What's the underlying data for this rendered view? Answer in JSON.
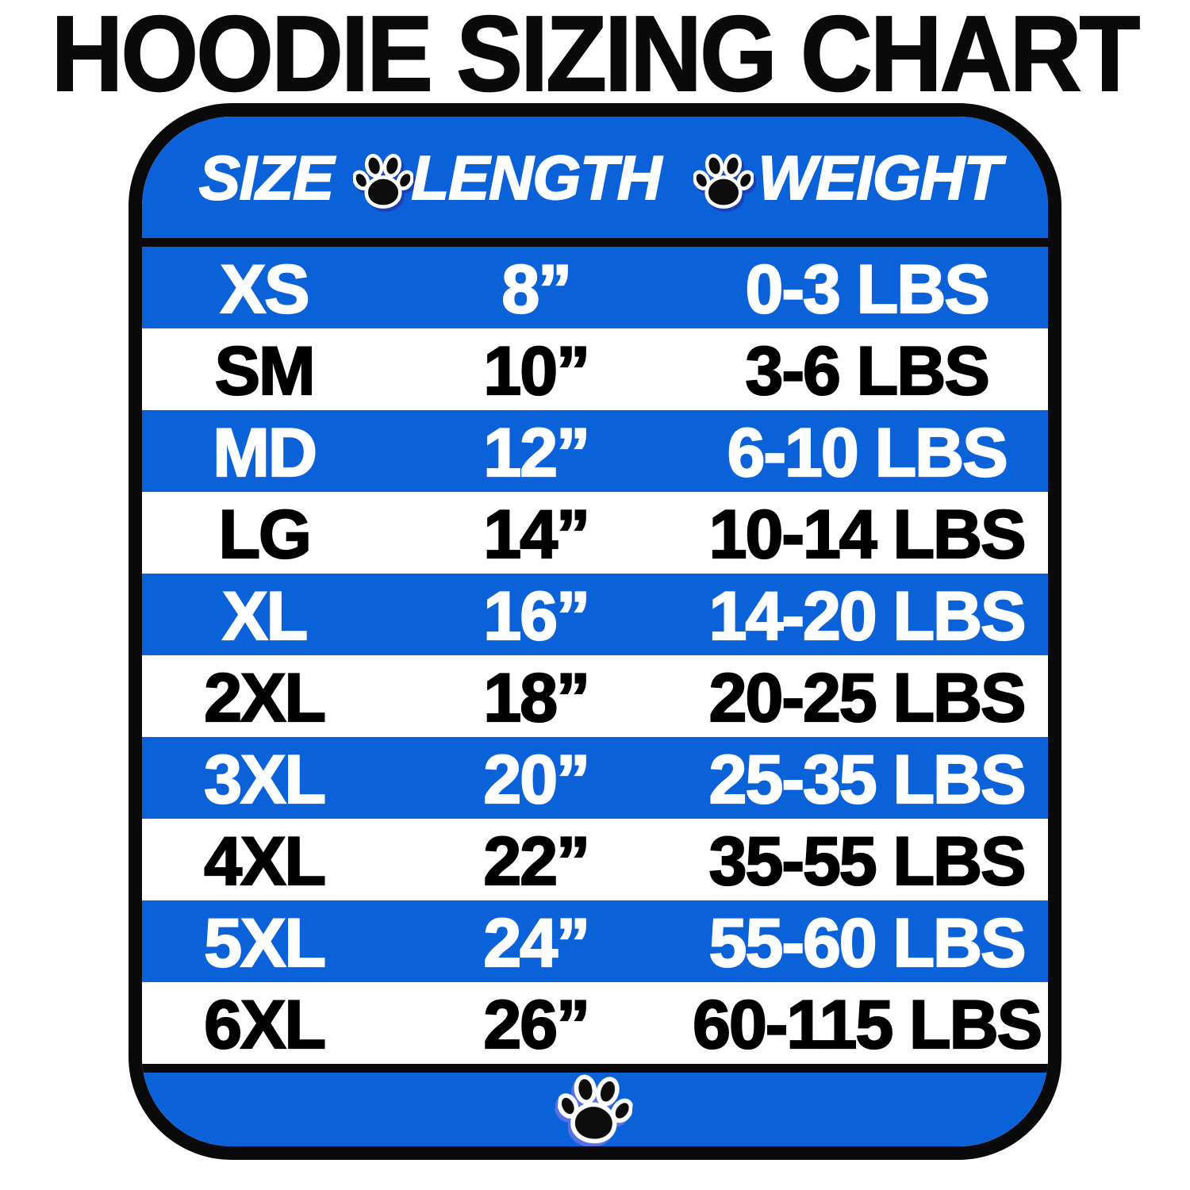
{
  "title": "HOODIE SIZING CHART",
  "chart_data": {
    "type": "table",
    "title": "HOODIE SIZING CHART",
    "columns": [
      "SIZE",
      "LENGTH",
      "WEIGHT"
    ],
    "rows": [
      [
        "XS",
        "8”",
        "0-3 LBS"
      ],
      [
        "SM",
        "10”",
        "3-6 LBS"
      ],
      [
        "MD",
        "12”",
        "6-10 LBS"
      ],
      [
        "LG",
        "14”",
        "10-14 LBS"
      ],
      [
        "XL",
        "16”",
        "14-20 LBS"
      ],
      [
        "2XL",
        "18”",
        "20-25 LBS"
      ],
      [
        "3XL",
        "20”",
        "25-35 LBS"
      ],
      [
        "4XL",
        "22”",
        "35-55 LBS"
      ],
      [
        "5XL",
        "24”",
        "55-60 LBS"
      ],
      [
        "6XL",
        "26”",
        "60-115 LBS"
      ]
    ],
    "layout": {
      "row_striping": "alternating blue and white, first data row (XS) is blue",
      "header_background": "blue with white italic labels and paw icons between them",
      "footer": "blue band with single centered paw icon",
      "card": "rounded rectangle with thick black border"
    },
    "icons": {
      "header_separators": "paw-icon between SIZE/LENGTH and LENGTH/WEIGHT",
      "footer": "paw-icon"
    },
    "colors": {
      "accent_blue": "#0b62d8",
      "border_black": "#0a0a0a",
      "text_on_blue": "#ffffff",
      "text_on_white": "#000000",
      "paw_fill": "#0d0d0d",
      "paw_outline": "#ffffff"
    }
  }
}
